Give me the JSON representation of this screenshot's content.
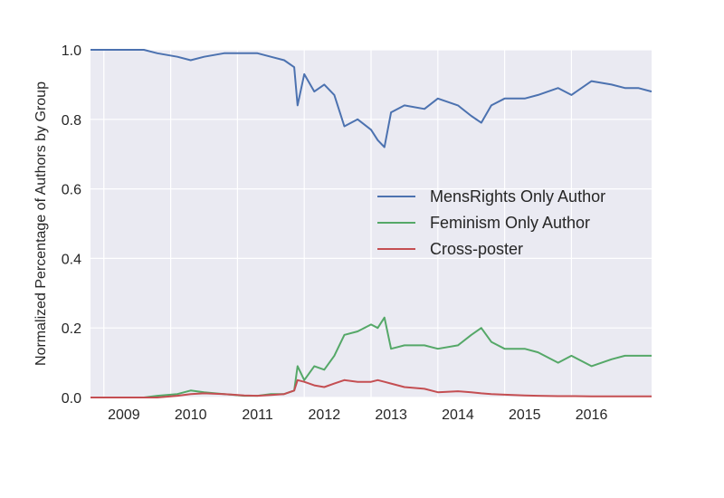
{
  "chart_data": {
    "type": "line",
    "title": "",
    "xlabel": "",
    "ylabel": "Normalized Percentage of Authors by Group",
    "xlim": [
      2008.5,
      2016.9
    ],
    "ylim": [
      0.0,
      1.0
    ],
    "x_ticks": [
      "2009",
      "2010",
      "2011",
      "2012",
      "2013",
      "2014",
      "2015",
      "2016"
    ],
    "y_ticks": [
      "0.0",
      "0.2",
      "0.4",
      "0.6",
      "0.8",
      "1.0"
    ],
    "grid": true,
    "legend_position": "center-right",
    "x": [
      2008.5,
      2009.0,
      2009.3,
      2009.5,
      2009.8,
      2010.0,
      2010.2,
      2010.5,
      2010.8,
      2011.0,
      2011.2,
      2011.4,
      2011.55,
      2011.6,
      2011.7,
      2011.85,
      2012.0,
      2012.15,
      2012.3,
      2012.5,
      2012.7,
      2012.8,
      2012.9,
      2013.0,
      2013.2,
      2013.5,
      2013.7,
      2014.0,
      2014.2,
      2014.35,
      2014.5,
      2014.7,
      2015.0,
      2015.2,
      2015.5,
      2015.7,
      2016.0,
      2016.3,
      2016.5,
      2016.7,
      2016.9
    ],
    "series": [
      {
        "name": "MensRights Only Author",
        "color": "#4c72b0",
        "values": [
          1.0,
          1.0,
          1.0,
          0.99,
          0.98,
          0.97,
          0.98,
          0.99,
          0.99,
          0.99,
          0.98,
          0.97,
          0.95,
          0.84,
          0.93,
          0.88,
          0.9,
          0.87,
          0.78,
          0.8,
          0.77,
          0.74,
          0.72,
          0.82,
          0.84,
          0.83,
          0.86,
          0.84,
          0.81,
          0.79,
          0.84,
          0.86,
          0.86,
          0.87,
          0.89,
          0.87,
          0.91,
          0.9,
          0.89,
          0.89,
          0.88
        ]
      },
      {
        "name": "Feminism Only Author",
        "color": "#55a868",
        "values": [
          0.0,
          0.0,
          0.0,
          0.005,
          0.01,
          0.02,
          0.015,
          0.01,
          0.005,
          0.005,
          0.01,
          0.01,
          0.02,
          0.09,
          0.05,
          0.09,
          0.08,
          0.12,
          0.18,
          0.19,
          0.21,
          0.2,
          0.23,
          0.14,
          0.15,
          0.15,
          0.14,
          0.15,
          0.18,
          0.2,
          0.16,
          0.14,
          0.14,
          0.13,
          0.1,
          0.12,
          0.09,
          0.11,
          0.12,
          0.12,
          0.12
        ]
      },
      {
        "name": "Cross-poster",
        "color": "#c44e52",
        "values": [
          0.0,
          0.0,
          0.0,
          0.0,
          0.005,
          0.01,
          0.012,
          0.01,
          0.006,
          0.005,
          0.007,
          0.01,
          0.02,
          0.05,
          0.045,
          0.035,
          0.03,
          0.04,
          0.05,
          0.045,
          0.045,
          0.05,
          0.045,
          0.04,
          0.03,
          0.025,
          0.015,
          0.018,
          0.015,
          0.012,
          0.01,
          0.008,
          0.006,
          0.005,
          0.004,
          0.004,
          0.003,
          0.003,
          0.003,
          0.003,
          0.003
        ]
      }
    ]
  }
}
